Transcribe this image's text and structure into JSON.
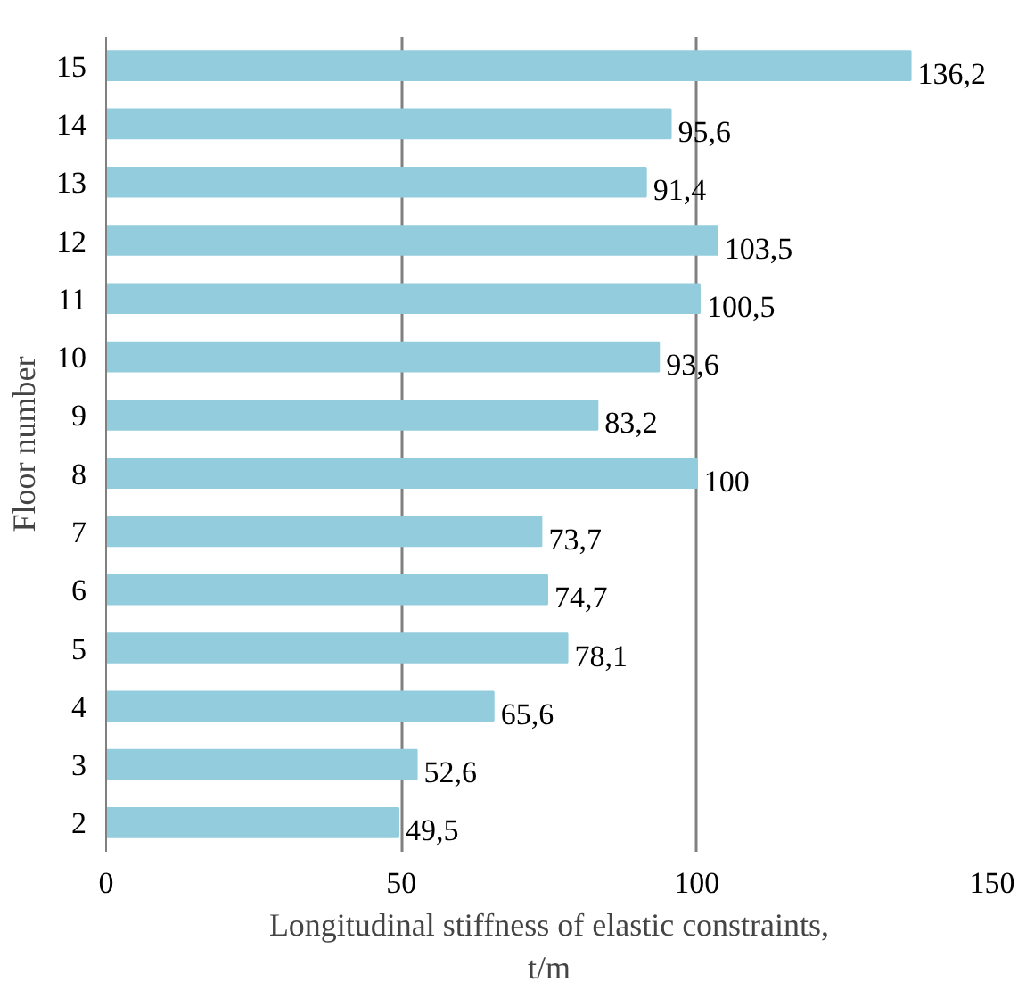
{
  "chart_data": {
    "type": "bar",
    "orientation": "horizontal",
    "categories": [
      "15",
      "14",
      "13",
      "12",
      "11",
      "10",
      "9",
      "8",
      "7",
      "6",
      "5",
      "4",
      "3",
      "2"
    ],
    "values": [
      136.2,
      95.6,
      91.4,
      103.5,
      100.5,
      93.6,
      83.2,
      100,
      73.7,
      74.7,
      78.1,
      65.6,
      52.6,
      49.5
    ],
    "value_labels": [
      "136,2",
      "95,6",
      "91,4",
      "103,5",
      "100,5",
      "93,6",
      "83,2",
      "100",
      "73,7",
      "74,7",
      "78,1",
      "65,6",
      "52,6",
      "49,5"
    ],
    "color": "#93cddd",
    "xlim": [
      0,
      150
    ],
    "xticks": [
      0,
      50,
      100,
      150
    ],
    "xlabel": "Longitudinal stiffness of elastic constraints,\nt/m",
    "ylabel": "Floor number",
    "grid": "x"
  }
}
